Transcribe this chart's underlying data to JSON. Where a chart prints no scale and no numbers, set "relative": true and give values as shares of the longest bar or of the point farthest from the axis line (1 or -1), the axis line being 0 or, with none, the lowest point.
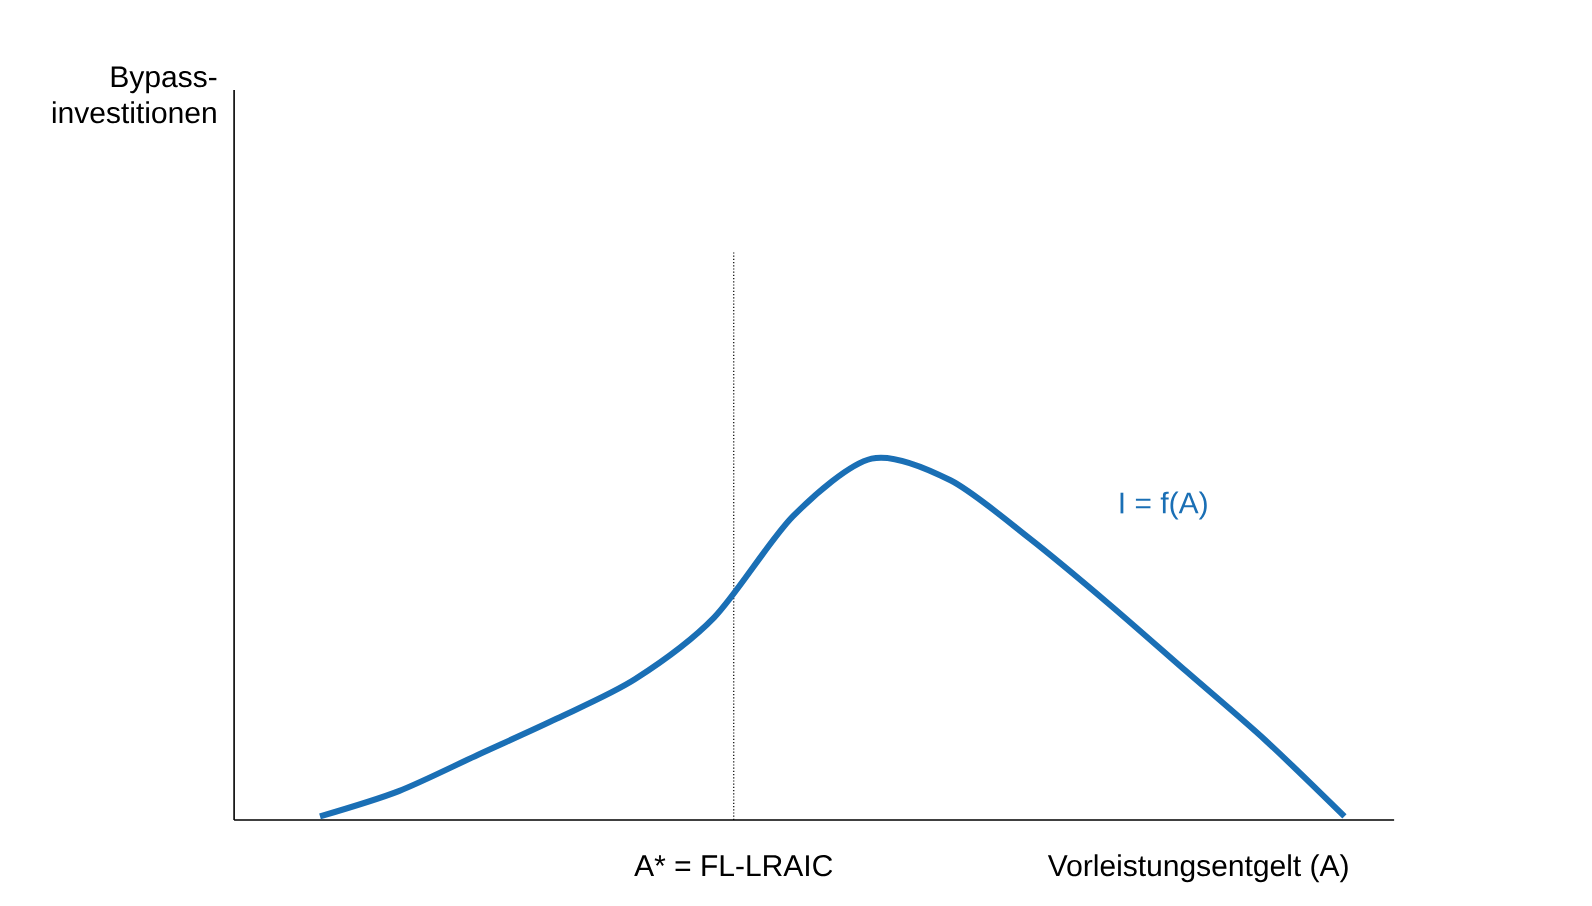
{
  "chart_data": {
    "type": "line",
    "relative": true,
    "xlabel": "Vorleistungsentgelt (A)",
    "categories": [
      null,
      null,
      null,
      null,
      null,
      null,
      null,
      null,
      null,
      null,
      null,
      null,
      null,
      null
    ],
    "series": [
      {
        "name": "I = f(A)",
        "color": "#1a6fb5",
        "values": [
          0.01,
          0.08,
          0.18,
          0.28,
          0.39,
          0.56,
          0.84,
          1,
          0.94,
          0.78,
          0.6,
          0.41,
          0.22,
          0.01
        ]
      }
    ],
    "annotations": [
      "A* = FL-LRAIC",
      "Bypass-investitionen"
    ],
    "legend": false,
    "marker": "none",
    "line_style": "solid"
  }
}
